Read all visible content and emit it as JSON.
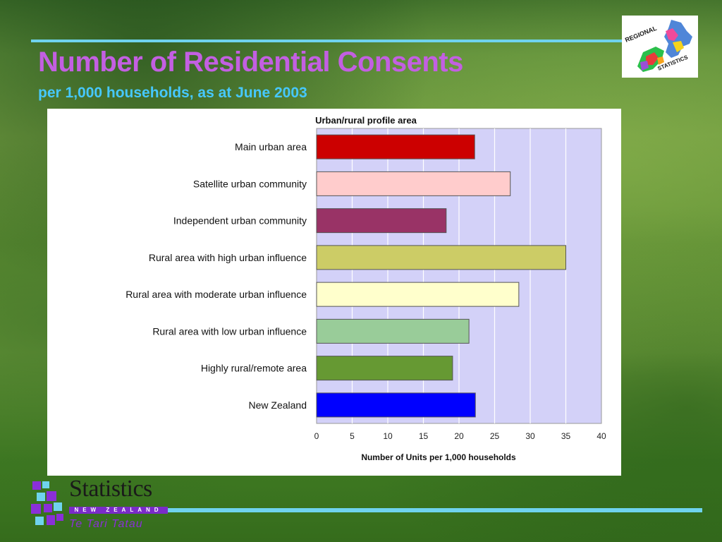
{
  "slide": {
    "title": "Number of Residential Consents",
    "subtitle": "per 1,000 households, as at June 2003"
  },
  "logos": {
    "regional_text_top": "REGIONAL",
    "regional_text_bottom": "STATISTICS",
    "stats_word": "Statistics",
    "stats_country": "NEW ZEALAND",
    "stats_maori": "Te Tari Tatau"
  },
  "colors": {
    "title": "#c35fe2",
    "subtitle": "#46c8ff",
    "rule": "#6fd3ee",
    "plot_bg": "#d3d1f8"
  },
  "chart_data": {
    "type": "bar",
    "orientation": "horizontal",
    "title": "Urban/rural profile area",
    "xlabel": "Number of Units per 1,000 households",
    "ylabel": "",
    "xlim": [
      0,
      40
    ],
    "xticks": [
      0,
      5,
      10,
      15,
      20,
      25,
      30,
      35,
      40
    ],
    "grid": true,
    "categories": [
      "Main urban area",
      "Satellite urban community",
      "Independent urban community",
      "Rural area with high urban influence",
      "Rural area with moderate urban influence",
      "Rural area with low urban influence",
      "Highly rural/remote area",
      "New Zealand"
    ],
    "values": [
      22.2,
      27.2,
      18.2,
      35.0,
      28.4,
      21.4,
      19.1,
      22.3
    ],
    "bar_colors": [
      "#cc0000",
      "#ffcccc",
      "#993366",
      "#cccc66",
      "#ffffcc",
      "#99cc99",
      "#669933",
      "#0000ff"
    ]
  }
}
